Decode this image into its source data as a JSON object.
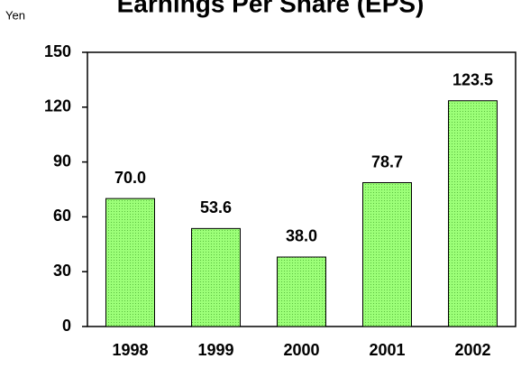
{
  "chart_data": {
    "type": "bar",
    "title": "Earnings Per Share (EPS)",
    "y_label": "Yen",
    "categories": [
      "1998",
      "1999",
      "2000",
      "2001",
      "2002"
    ],
    "values": [
      70.0,
      53.6,
      38.0,
      78.7,
      123.5
    ],
    "value_labels": [
      "70.0",
      "53.6",
      "38.0",
      "78.7",
      "123.5"
    ],
    "color": "#8cf06c",
    "ylim": [
      0,
      150
    ],
    "yticks": [
      0,
      30,
      60,
      90,
      120,
      150
    ],
    "grid": false
  }
}
